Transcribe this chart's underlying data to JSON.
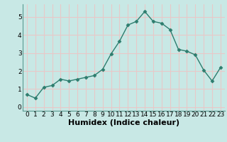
{
  "x": [
    0,
    1,
    2,
    3,
    4,
    5,
    6,
    7,
    8,
    9,
    10,
    11,
    12,
    13,
    14,
    15,
    16,
    17,
    18,
    19,
    20,
    21,
    22,
    23
  ],
  "y": [
    0.7,
    0.5,
    1.1,
    1.2,
    1.55,
    1.45,
    1.55,
    1.65,
    1.75,
    2.1,
    2.95,
    3.65,
    4.55,
    4.75,
    5.3,
    4.75,
    4.65,
    4.3,
    3.2,
    3.1,
    2.9,
    2.05,
    1.45,
    2.2
  ],
  "line_color": "#2d7d6e",
  "marker": "D",
  "markersize": 2.5,
  "linewidth": 1.0,
  "xlabel": "Humidex (Indice chaleur)",
  "xlim": [
    -0.5,
    23.5
  ],
  "ylim": [
    -0.2,
    5.7
  ],
  "yticks": [
    0,
    1,
    2,
    3,
    4,
    5
  ],
  "xtick_labels": [
    "0",
    "1",
    "2",
    "3",
    "4",
    "5",
    "6",
    "7",
    "8",
    "9",
    "10",
    "11",
    "12",
    "13",
    "14",
    "15",
    "16",
    "17",
    "18",
    "19",
    "20",
    "21",
    "22",
    "23"
  ],
  "background_color": "#c8e8e5",
  "grid_color": "#e8c8c8",
  "tick_fontsize": 6.5,
  "xlabel_fontsize": 8,
  "spine_color": "#5a9a90"
}
